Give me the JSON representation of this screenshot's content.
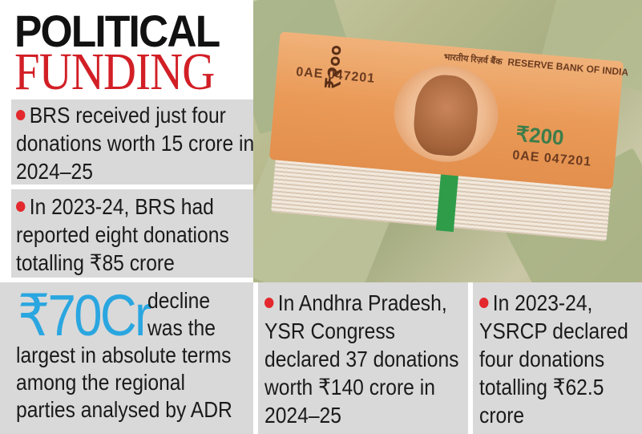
{
  "title": {
    "line1": "POLITICAL",
    "line2": "FUNDING",
    "line1_color": "#111111",
    "line2_color": "#d21f26"
  },
  "accent_color": "#e3292e",
  "number_color": "#2aa6e0",
  "box_bg": "#d9d9d9",
  "photo": {
    "serial_1": "0AE 047201",
    "serial_2": "0AE 047201",
    "bank_hindi": "भारतीय रिज़र्व बैंक",
    "bank_english": "RESERVE BANK OF INDIA",
    "denomination": "₹200",
    "denomination_vertical": "₹२००"
  },
  "boxes": [
    {
      "text": "BRS received just four donations worth 15 crore in 2024–25"
    },
    {
      "text": "In 2023-24, BRS had reported eight donations totalling ₹85 crore"
    },
    {
      "big_number": "₹70Cr",
      "decline_text": "decline was the",
      "rest_text": "largest in absolute terms among the regional parties analysed by ADR"
    },
    {
      "text": "In Andhra Pradesh, YSR Congress declared 37 donations worth ₹140 crore in 2024–25"
    },
    {
      "text": "In 2023-24, YSRCP declared four donations totalling ₹62.5 crore"
    }
  ]
}
